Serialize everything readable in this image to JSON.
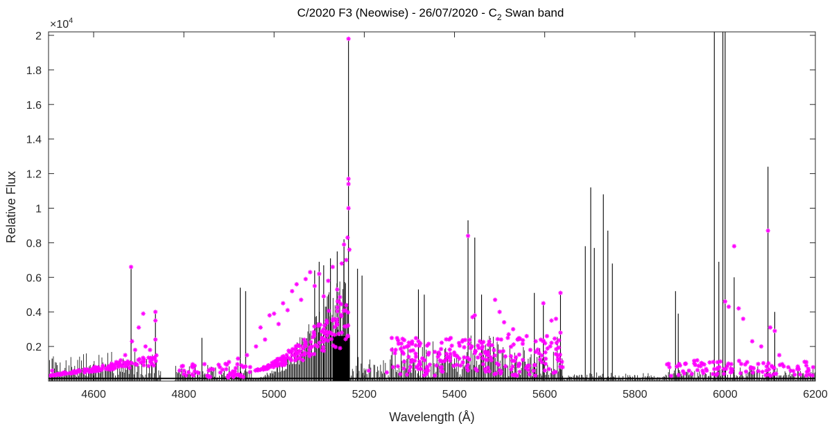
{
  "chart_data": {
    "type": "line",
    "title_main": "C/2020 F3 (Neowise) - 26/07/2020 - C",
    "title_sub": "2",
    "title_tail": " Swan band",
    "xlabel": "Wavelength (Å)",
    "ylabel": "Relative Flux",
    "y_multiplier_base": "×10",
    "y_multiplier_exp": "4",
    "xlim": [
      4500,
      6200
    ],
    "ylim": [
      0,
      20200
    ],
    "x_ticks": [
      {
        "value": 4600,
        "label": "4600"
      },
      {
        "value": 4800,
        "label": "4800"
      },
      {
        "value": 5000,
        "label": "5000"
      },
      {
        "value": 5200,
        "label": "5200"
      },
      {
        "value": 5400,
        "label": "5400"
      },
      {
        "value": 5600,
        "label": "5600"
      },
      {
        "value": 5800,
        "label": "5800"
      },
      {
        "value": 6000,
        "label": "6000"
      },
      {
        "value": 6200,
        "label": "6200"
      }
    ],
    "y_ticks": [
      {
        "value": 2000,
        "label": "0.2"
      },
      {
        "value": 4000,
        "label": "0.4"
      },
      {
        "value": 6000,
        "label": "0.6"
      },
      {
        "value": 8000,
        "label": "0.8"
      },
      {
        "value": 10000,
        "label": "1"
      },
      {
        "value": 12000,
        "label": "1.2"
      },
      {
        "value": 14000,
        "label": "1.4"
      },
      {
        "value": 16000,
        "label": "1.6"
      },
      {
        "value": 18000,
        "label": "1.8"
      },
      {
        "value": 20000,
        "label": "2"
      }
    ],
    "grid": false,
    "series": [
      {
        "style": "stem",
        "color": "#000000",
        "lines": [
          {
            "x": 4508,
            "y": 1300
          },
          {
            "x": 4683,
            "y": 6600
          },
          {
            "x": 4737,
            "y": 4000
          },
          {
            "x": 4840,
            "y": 2500
          },
          {
            "x": 4925,
            "y": 5400
          },
          {
            "x": 4937,
            "y": 5200
          },
          {
            "x": 5090,
            "y": 6400
          },
          {
            "x": 5100,
            "y": 6900
          },
          {
            "x": 5110,
            "y": 6700
          },
          {
            "x": 5125,
            "y": 7100
          },
          {
            "x": 5140,
            "y": 7500
          },
          {
            "x": 5155,
            "y": 8200
          },
          {
            "x": 5165,
            "y": 19800
          },
          {
            "x": 5185,
            "y": 6500
          },
          {
            "x": 5195,
            "y": 6100
          },
          {
            "x": 5320,
            "y": 5300
          },
          {
            "x": 5333,
            "y": 5000
          },
          {
            "x": 5430,
            "y": 9300
          },
          {
            "x": 5445,
            "y": 8300
          },
          {
            "x": 5460,
            "y": 5000
          },
          {
            "x": 5577,
            "y": 5100
          },
          {
            "x": 5597,
            "y": 4500
          },
          {
            "x": 5635,
            "y": 5100
          },
          {
            "x": 5690,
            "y": 7800
          },
          {
            "x": 5702,
            "y": 11200
          },
          {
            "x": 5710,
            "y": 7700
          },
          {
            "x": 5730,
            "y": 10800
          },
          {
            "x": 5740,
            "y": 8700
          },
          {
            "x": 5750,
            "y": 6800
          },
          {
            "x": 5890,
            "y": 5200
          },
          {
            "x": 5896,
            "y": 3900
          },
          {
            "x": 5976,
            "y": 20200
          },
          {
            "x": 5986,
            "y": 6900
          },
          {
            "x": 5995,
            "y": 20200
          },
          {
            "x": 6000,
            "y": 20200
          },
          {
            "x": 6020,
            "y": 6000
          },
          {
            "x": 6095,
            "y": 12400
          },
          {
            "x": 6110,
            "y": 4000
          }
        ],
        "bands": [
          {
            "x0": 4500,
            "x1": 4740,
            "y0": 100,
            "y1": 2000
          },
          {
            "x0": 4740,
            "x1": 4750,
            "y0": 50,
            "y1": 900
          },
          {
            "x0": 4780,
            "x1": 4950,
            "y0": 50,
            "y1": 1100
          },
          {
            "x0": 4950,
            "x1": 5165,
            "y0": 100,
            "y1": 7500
          },
          {
            "x0": 5165,
            "x1": 5260,
            "y0": 50,
            "y1": 1700
          },
          {
            "x0": 5260,
            "x1": 5640,
            "y0": 100,
            "y1": 3000
          },
          {
            "x0": 5640,
            "x1": 5870,
            "y0": 50,
            "y1": 600
          },
          {
            "x0": 5870,
            "x1": 6200,
            "y0": 50,
            "y1": 1000
          }
        ]
      },
      {
        "style": "markers",
        "marker": "*",
        "color": "#ff00ff",
        "points": [
          {
            "x": 4508,
            "y": 600
          },
          {
            "x": 4520,
            "y": 400
          },
          {
            "x": 4535,
            "y": 500
          },
          {
            "x": 4550,
            "y": 450
          },
          {
            "x": 4565,
            "y": 550
          },
          {
            "x": 4580,
            "y": 500
          },
          {
            "x": 4595,
            "y": 650
          },
          {
            "x": 4610,
            "y": 700
          },
          {
            "x": 4620,
            "y": 800
          },
          {
            "x": 4630,
            "y": 750
          },
          {
            "x": 4640,
            "y": 1000
          },
          {
            "x": 4650,
            "y": 1100
          },
          {
            "x": 4660,
            "y": 1200
          },
          {
            "x": 4670,
            "y": 1500
          },
          {
            "x": 4683,
            "y": 6600
          },
          {
            "x": 4685,
            "y": 2300
          },
          {
            "x": 4692,
            "y": 1800
          },
          {
            "x": 4700,
            "y": 3100
          },
          {
            "x": 4710,
            "y": 3900
          },
          {
            "x": 4715,
            "y": 2000
          },
          {
            "x": 4725,
            "y": 1800
          },
          {
            "x": 4737,
            "y": 4000
          },
          {
            "x": 4737,
            "y": 3500
          },
          {
            "x": 4737,
            "y": 2400
          },
          {
            "x": 4800,
            "y": 400
          },
          {
            "x": 4830,
            "y": 500
          },
          {
            "x": 4860,
            "y": 700
          },
          {
            "x": 4880,
            "y": 800
          },
          {
            "x": 4900,
            "y": 1100
          },
          {
            "x": 4920,
            "y": 1300
          },
          {
            "x": 4940,
            "y": 1500
          },
          {
            "x": 4960,
            "y": 2000
          },
          {
            "x": 4970,
            "y": 3100
          },
          {
            "x": 4980,
            "y": 2400
          },
          {
            "x": 4990,
            "y": 3800
          },
          {
            "x": 5000,
            "y": 3900
          },
          {
            "x": 5010,
            "y": 3300
          },
          {
            "x": 5020,
            "y": 4500
          },
          {
            "x": 5030,
            "y": 4100
          },
          {
            "x": 5040,
            "y": 5200
          },
          {
            "x": 5050,
            "y": 5600
          },
          {
            "x": 5060,
            "y": 4700
          },
          {
            "x": 5070,
            "y": 5900
          },
          {
            "x": 5080,
            "y": 6300
          },
          {
            "x": 5090,
            "y": 5500
          },
          {
            "x": 5100,
            "y": 6200
          },
          {
            "x": 5110,
            "y": 4900
          },
          {
            "x": 5120,
            "y": 5800
          },
          {
            "x": 5130,
            "y": 6600
          },
          {
            "x": 5140,
            "y": 5300
          },
          {
            "x": 5150,
            "y": 6800
          },
          {
            "x": 5155,
            "y": 7900
          },
          {
            "x": 5160,
            "y": 7000
          },
          {
            "x": 5163,
            "y": 8300
          },
          {
            "x": 5165,
            "y": 19800
          },
          {
            "x": 5165,
            "y": 11700
          },
          {
            "x": 5165,
            "y": 11400
          },
          {
            "x": 5165,
            "y": 10000
          },
          {
            "x": 5167,
            "y": 7600
          },
          {
            "x": 5110,
            "y": 3000
          },
          {
            "x": 5130,
            "y": 3500
          },
          {
            "x": 5150,
            "y": 2800
          },
          {
            "x": 5210,
            "y": 600
          },
          {
            "x": 5250,
            "y": 500
          },
          {
            "x": 5280,
            "y": 400
          },
          {
            "x": 5300,
            "y": 600
          },
          {
            "x": 5320,
            "y": 700
          },
          {
            "x": 5340,
            "y": 800
          },
          {
            "x": 5360,
            "y": 900
          },
          {
            "x": 5380,
            "y": 1200
          },
          {
            "x": 5400,
            "y": 1500
          },
          {
            "x": 5410,
            "y": 2200
          },
          {
            "x": 5430,
            "y": 8400
          },
          {
            "x": 5440,
            "y": 3700
          },
          {
            "x": 5445,
            "y": 3800
          },
          {
            "x": 5460,
            "y": 2200
          },
          {
            "x": 5475,
            "y": 1500
          },
          {
            "x": 5490,
            "y": 4700
          },
          {
            "x": 5500,
            "y": 4000
          },
          {
            "x": 5510,
            "y": 3400
          },
          {
            "x": 5520,
            "y": 2700
          },
          {
            "x": 5530,
            "y": 3000
          },
          {
            "x": 5540,
            "y": 2400
          },
          {
            "x": 5560,
            "y": 2600
          },
          {
            "x": 5580,
            "y": 2300
          },
          {
            "x": 5597,
            "y": 4500
          },
          {
            "x": 5605,
            "y": 2600
          },
          {
            "x": 5615,
            "y": 3500
          },
          {
            "x": 5625,
            "y": 3600
          },
          {
            "x": 5635,
            "y": 5100
          },
          {
            "x": 5635,
            "y": 2800
          },
          {
            "x": 5880,
            "y": 300
          },
          {
            "x": 5900,
            "y": 900
          },
          {
            "x": 5920,
            "y": 600
          },
          {
            "x": 5950,
            "y": 600
          },
          {
            "x": 6000,
            "y": 4600
          },
          {
            "x": 6008,
            "y": 4300
          },
          {
            "x": 6020,
            "y": 7800
          },
          {
            "x": 6030,
            "y": 4200
          },
          {
            "x": 6040,
            "y": 3600
          },
          {
            "x": 6060,
            "y": 2300
          },
          {
            "x": 6080,
            "y": 2000
          },
          {
            "x": 6095,
            "y": 8700
          },
          {
            "x": 6100,
            "y": 3100
          },
          {
            "x": 6110,
            "y": 2900
          },
          {
            "x": 6120,
            "y": 1500
          },
          {
            "x": 6140,
            "y": 800
          },
          {
            "x": 6160,
            "y": 700
          },
          {
            "x": 6180,
            "y": 900
          },
          {
            "x": 6195,
            "y": 800
          }
        ],
        "dense_bands": [
          {
            "x0": 4500,
            "x1": 4740,
            "y0": 300,
            "y1": 1500,
            "count": 110
          },
          {
            "x0": 4780,
            "x1": 4950,
            "y0": 200,
            "y1": 1000,
            "count": 50
          },
          {
            "x0": 4950,
            "x1": 5165,
            "y0": 600,
            "y1": 5500,
            "count": 160
          },
          {
            "x0": 5260,
            "x1": 5640,
            "y0": 300,
            "y1": 2500,
            "count": 220
          },
          {
            "x0": 5870,
            "x1": 6200,
            "y0": 300,
            "y1": 1200,
            "count": 90
          }
        ]
      }
    ]
  }
}
